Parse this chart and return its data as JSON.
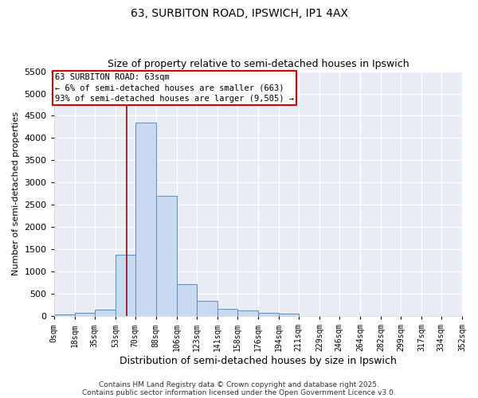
{
  "title_line1": "63, SURBITON ROAD, IPSWICH, IP1 4AX",
  "title_line2": "Size of property relative to semi-detached houses in Ipswich",
  "xlabel": "Distribution of semi-detached houses by size in Ipswich",
  "ylabel": "Number of semi-detached properties",
  "bin_edges": [
    0,
    18,
    35,
    53,
    70,
    88,
    106,
    123,
    141,
    158,
    176,
    194,
    211,
    229,
    246,
    264,
    282,
    299,
    317,
    334,
    352
  ],
  "bar_heights": [
    30,
    80,
    150,
    1380,
    4350,
    2700,
    720,
    350,
    170,
    120,
    80,
    50,
    10,
    5,
    3,
    2,
    2,
    2,
    2,
    2
  ],
  "bar_color": "#c9d9ef",
  "bar_edge_color": "#5b8dc8",
  "background_color": "#e8edf5",
  "grid_color": "#ffffff",
  "red_line_x": 63,
  "annotation_text": "63 SURBITON ROAD: 63sqm\n← 6% of semi-detached houses are smaller (663)\n93% of semi-detached houses are larger (9,505) →",
  "annotation_box_color": "#ffffff",
  "annotation_border_color": "#cc0000",
  "ylim": [
    0,
    5500
  ],
  "yticks": [
    0,
    500,
    1000,
    1500,
    2000,
    2500,
    3000,
    3500,
    4000,
    4500,
    5000,
    5500
  ],
  "tick_labels": [
    "0sqm",
    "18sqm",
    "35sqm",
    "53sqm",
    "70sqm",
    "88sqm",
    "106sqm",
    "123sqm",
    "141sqm",
    "158sqm",
    "176sqm",
    "194sqm",
    "211sqm",
    "229sqm",
    "246sqm",
    "264sqm",
    "282sqm",
    "299sqm",
    "317sqm",
    "334sqm",
    "352sqm"
  ],
  "footer_line1": "Contains HM Land Registry data © Crown copyright and database right 2025.",
  "footer_line2": "Contains public sector information licensed under the Open Government Licence v3.0."
}
